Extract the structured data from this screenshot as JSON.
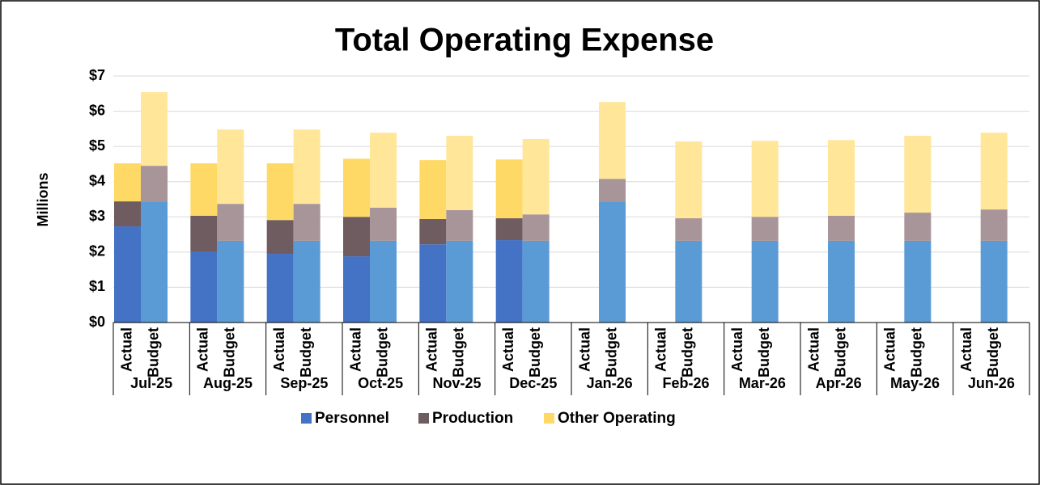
{
  "chart_data": {
    "type": "grouped_stacked_bar",
    "title": "Total Operating Expense",
    "y_label": "Millions",
    "categories": [
      "Jul-25",
      "Aug-25",
      "Sep-25",
      "Oct-25",
      "Nov-25",
      "Dec-25",
      "Jan-26",
      "Feb-26",
      "Mar-26",
      "Apr-26",
      "May-26",
      "Jun-26"
    ],
    "subcategories": [
      "Actual",
      "Budget"
    ],
    "series": [
      {
        "name": "Personnel",
        "color": "#4472c4",
        "budget_color": "#5b9bd5",
        "values": [
          2.73,
          2.02,
          1.95,
          1.88,
          2.22,
          2.34,
          null,
          null,
          null,
          null,
          null,
          null
        ],
        "budget_values": [
          3.44,
          2.32,
          2.32,
          2.32,
          2.32,
          2.32,
          3.44,
          2.32,
          2.32,
          2.32,
          2.32,
          2.32
        ]
      },
      {
        "name": "Production",
        "color": "#6f5c60",
        "budget_color": "#a8959a",
        "values": [
          0.71,
          1.01,
          0.96,
          1.12,
          0.72,
          0.62,
          null,
          null,
          null,
          null,
          null,
          null
        ],
        "budget_values": [
          1.01,
          1.05,
          1.05,
          0.94,
          0.87,
          0.75,
          0.64,
          0.64,
          0.68,
          0.71,
          0.8,
          0.89
        ]
      },
      {
        "name": "Other Operating",
        "color": "#ffd966",
        "budget_color": "#ffe699",
        "values": [
          1.08,
          1.49,
          1.61,
          1.65,
          1.67,
          1.67,
          null,
          null,
          null,
          null,
          null,
          null
        ],
        "budget_values": [
          2.09,
          2.11,
          2.11,
          2.13,
          2.11,
          2.14,
          2.18,
          2.18,
          2.16,
          2.15,
          2.18,
          2.18
        ]
      }
    ],
    "ylim": [
      0,
      7
    ],
    "yticks": [
      {
        "value": 0,
        "label": "$0"
      },
      {
        "value": 1,
        "label": "$1"
      },
      {
        "value": 2,
        "label": "$2"
      },
      {
        "value": 3,
        "label": "$3"
      },
      {
        "value": 4,
        "label": "$4"
      },
      {
        "value": 5,
        "label": "$5"
      },
      {
        "value": 6,
        "label": "$6"
      },
      {
        "value": 7,
        "label": "$7"
      }
    ],
    "grid": true,
    "legend": "bottom"
  }
}
